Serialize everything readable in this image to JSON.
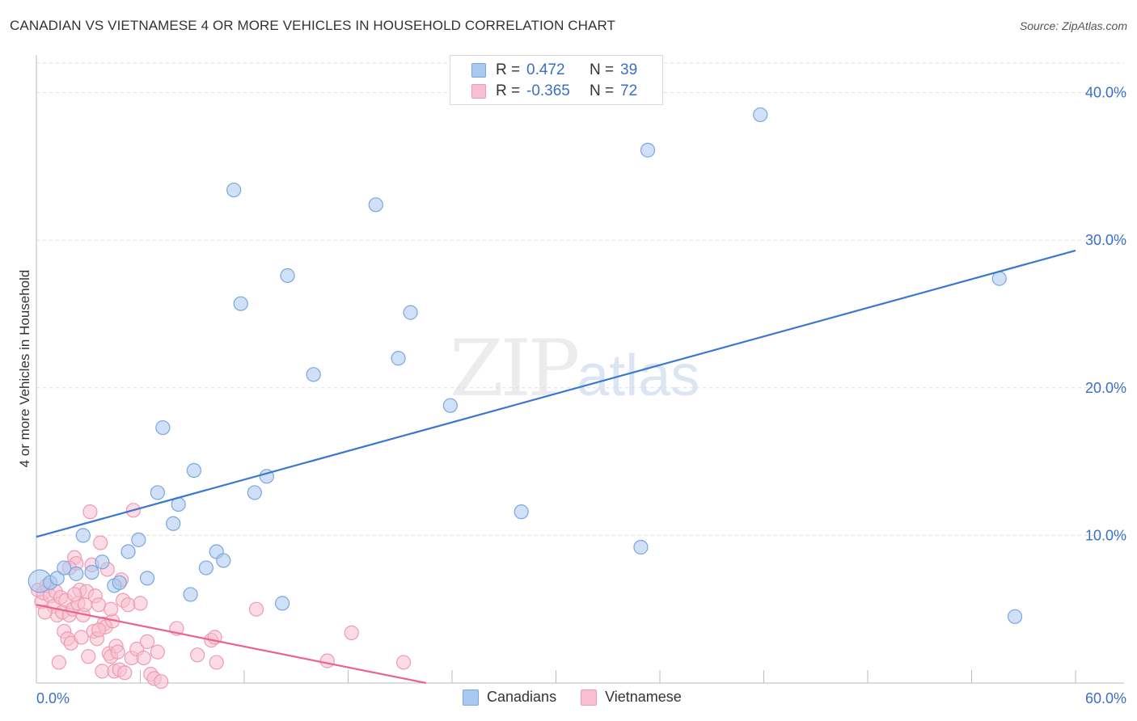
{
  "header": {
    "title": "CANADIAN VS VIETNAMESE 4 OR MORE VEHICLES IN HOUSEHOLD CORRELATION CHART",
    "source": "Source: ZipAtlas.com"
  },
  "watermark": {
    "zip": "ZIP",
    "atlas": "atlas"
  },
  "legend": {
    "rows": [
      {
        "r_label": "R =",
        "r_value": "0.472",
        "n_label": "N =",
        "n_value": "39",
        "color": "#a9c8f0",
        "border": "#7aa6e0"
      },
      {
        "r_label": "R =",
        "r_value": "-0.365",
        "n_label": "N =",
        "n_value": "72",
        "color": "#f7bfd0",
        "border": "#ef9ab5"
      }
    ],
    "bottom": [
      {
        "label": "Canadians",
        "color": "#a9c8f0",
        "border": "#7aa6e0"
      },
      {
        "label": "Vietnamese",
        "color": "#f7bfd0",
        "border": "#ef9ab5"
      }
    ]
  },
  "chart_data": {
    "type": "scatter",
    "title": "CANADIAN VS VIETNAMESE 4 OR MORE VEHICLES IN HOUSEHOLD CORRELATION CHART",
    "xlabel": "",
    "ylabel": "4 or more Vehicles in Household",
    "xlim": [
      0,
      60
    ],
    "ylim": [
      0,
      42
    ],
    "x_tick_labels": [
      "0.0%",
      "60.0%"
    ],
    "y_ticks": [
      10,
      20,
      30,
      40
    ],
    "y_tick_labels": [
      "10.0%",
      "20.0%",
      "30.0%",
      "40.0%"
    ],
    "grid": true,
    "series": [
      {
        "name": "Canadians",
        "color": "#a9c8f0",
        "stroke": "#7aa6e0",
        "trend_color": "#3a78d0",
        "trend": {
          "x": [
            0,
            60
          ],
          "y": [
            9.9,
            29.3
          ]
        },
        "points": [
          [
            0.2,
            6.9
          ],
          [
            0.8,
            6.8
          ],
          [
            1.2,
            7.1
          ],
          [
            1.6,
            7.8
          ],
          [
            2.3,
            7.4
          ],
          [
            2.7,
            10.0
          ],
          [
            3.2,
            7.5
          ],
          [
            3.8,
            8.2
          ],
          [
            4.5,
            6.6
          ],
          [
            4.8,
            6.8
          ],
          [
            5.3,
            8.9
          ],
          [
            5.9,
            9.7
          ],
          [
            6.4,
            7.1
          ],
          [
            7.0,
            12.9
          ],
          [
            7.3,
            17.3
          ],
          [
            7.9,
            10.8
          ],
          [
            8.2,
            12.1
          ],
          [
            8.9,
            6.0
          ],
          [
            9.1,
            14.4
          ],
          [
            9.8,
            7.8
          ],
          [
            10.4,
            8.9
          ],
          [
            10.8,
            8.3
          ],
          [
            11.4,
            33.4
          ],
          [
            11.8,
            25.7
          ],
          [
            12.6,
            12.9
          ],
          [
            13.3,
            14.0
          ],
          [
            14.5,
            27.6
          ],
          [
            14.2,
            5.4
          ],
          [
            16.0,
            20.9
          ],
          [
            19.6,
            32.4
          ],
          [
            20.9,
            22.0
          ],
          [
            21.6,
            25.1
          ],
          [
            23.9,
            18.8
          ],
          [
            28.0,
            11.6
          ],
          [
            34.9,
            9.2
          ],
          [
            35.3,
            36.1
          ],
          [
            41.8,
            38.5
          ],
          [
            55.6,
            27.4
          ],
          [
            56.5,
            4.5
          ]
        ]
      },
      {
        "name": "Vietnamese",
        "color": "#f7bfd0",
        "stroke": "#ef9ab5",
        "trend_color": "#e8648f",
        "trend": {
          "x": [
            0,
            22.5
          ],
          "y": [
            5.3,
            0.0
          ]
        },
        "points": [
          [
            0.1,
            6.3
          ],
          [
            0.3,
            5.5
          ],
          [
            0.4,
            6.1
          ],
          [
            0.6,
            6.6
          ],
          [
            0.8,
            5.9
          ],
          [
            1.0,
            5.2
          ],
          [
            1.1,
            6.2
          ],
          [
            1.2,
            4.6
          ],
          [
            1.3,
            1.4
          ],
          [
            1.4,
            5.8
          ],
          [
            1.5,
            4.8
          ],
          [
            1.6,
            3.5
          ],
          [
            1.7,
            5.6
          ],
          [
            1.8,
            3.0
          ],
          [
            1.9,
            4.6
          ],
          [
            2.0,
            2.7
          ],
          [
            2.1,
            5.0
          ],
          [
            2.2,
            8.5
          ],
          [
            2.3,
            8.1
          ],
          [
            2.4,
            5.4
          ],
          [
            2.5,
            6.3
          ],
          [
            2.6,
            3.1
          ],
          [
            2.7,
            4.6
          ],
          [
            2.8,
            5.3
          ],
          [
            2.9,
            6.2
          ],
          [
            3.0,
            1.8
          ],
          [
            3.1,
            11.6
          ],
          [
            3.2,
            8.0
          ],
          [
            3.3,
            3.5
          ],
          [
            3.4,
            5.9
          ],
          [
            3.5,
            3.0
          ],
          [
            3.6,
            5.3
          ],
          [
            3.7,
            9.5
          ],
          [
            3.8,
            0.8
          ],
          [
            3.9,
            4.0
          ],
          [
            4.0,
            3.8
          ],
          [
            4.1,
            7.7
          ],
          [
            4.2,
            2.0
          ],
          [
            4.3,
            1.8
          ],
          [
            4.4,
            4.2
          ],
          [
            4.5,
            0.8
          ],
          [
            4.6,
            2.5
          ],
          [
            4.7,
            2.1
          ],
          [
            4.8,
            0.9
          ],
          [
            4.9,
            7.0
          ],
          [
            5.0,
            5.6
          ],
          [
            5.1,
            0.7
          ],
          [
            5.3,
            5.3
          ],
          [
            5.5,
            1.7
          ],
          [
            5.6,
            11.7
          ],
          [
            5.8,
            2.3
          ],
          [
            6.0,
            5.4
          ],
          [
            6.2,
            1.7
          ],
          [
            6.4,
            2.8
          ],
          [
            6.6,
            0.6
          ],
          [
            6.8,
            0.3
          ],
          [
            7.0,
            2.1
          ],
          [
            7.2,
            0.1
          ],
          [
            8.1,
            3.7
          ],
          [
            9.3,
            1.9
          ],
          [
            10.1,
            2.9
          ],
          [
            10.3,
            3.1
          ],
          [
            10.4,
            1.4
          ],
          [
            12.7,
            5.0
          ],
          [
            16.8,
            1.5
          ],
          [
            18.2,
            3.4
          ],
          [
            21.2,
            1.4
          ],
          [
            0.5,
            4.8
          ],
          [
            1.9,
            7.8
          ],
          [
            2.2,
            6.0
          ],
          [
            3.6,
            3.6
          ],
          [
            4.3,
            5.0
          ]
        ]
      }
    ]
  }
}
